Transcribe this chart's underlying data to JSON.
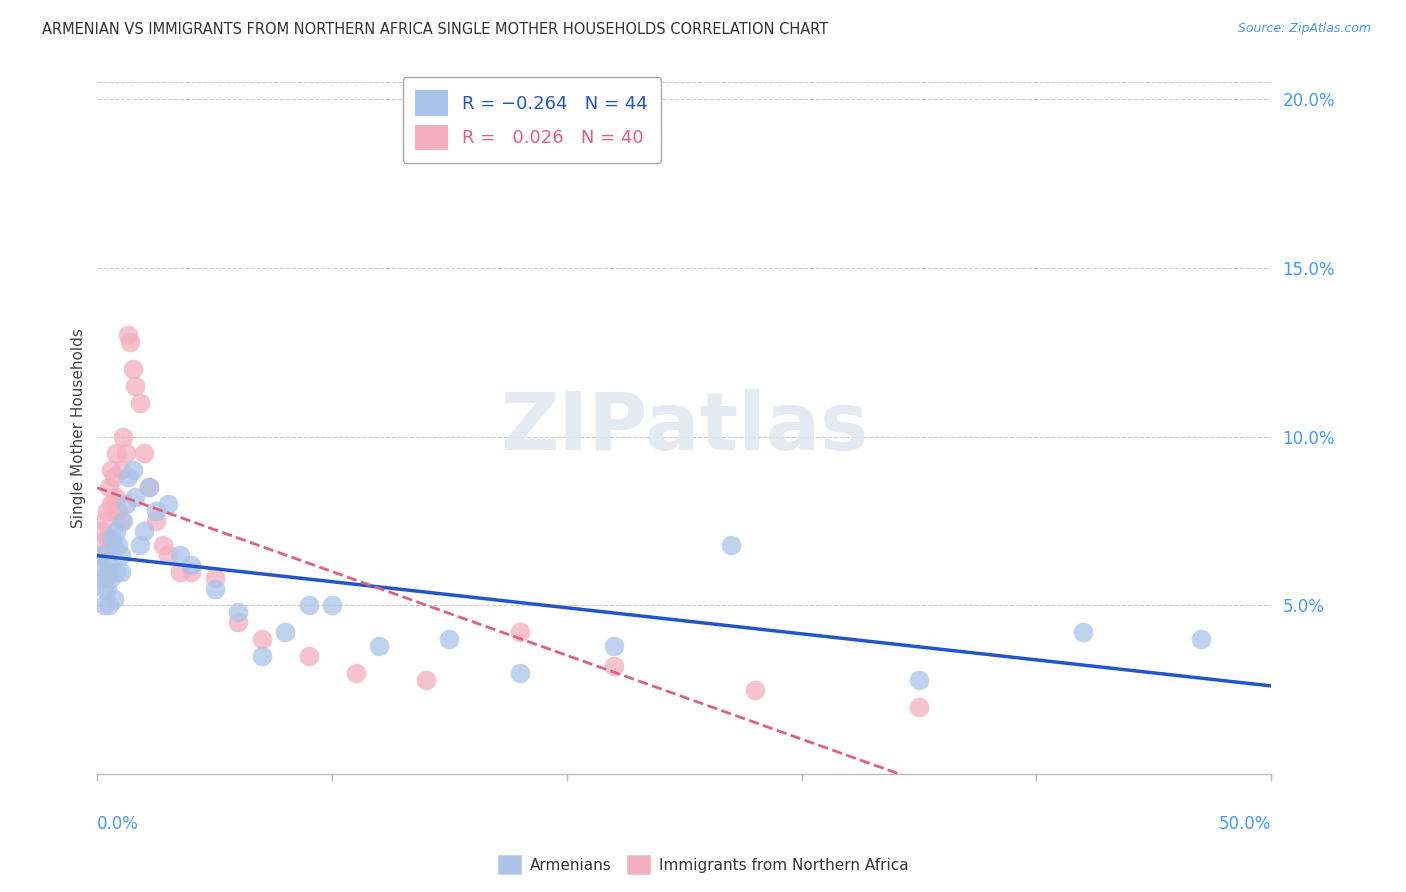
{
  "title": "ARMENIAN VS IMMIGRANTS FROM NORTHERN AFRICA SINGLE MOTHER HOUSEHOLDS CORRELATION CHART",
  "source": "Source: ZipAtlas.com",
  "ylabel": "Single Mother Households",
  "xlim": [
    0,
    0.5
  ],
  "ylim": [
    0,
    0.205
  ],
  "yticks": [
    0.05,
    0.1,
    0.15,
    0.2
  ],
  "ytick_labels": [
    "5.0%",
    "10.0%",
    "15.0%",
    "20.0%"
  ],
  "background_color": "#ffffff",
  "grid_color": "#cccccc",
  "armenian_color": "#aac4e8",
  "immigrant_color": "#f4aec0",
  "armenian_line_color": "#2255cc",
  "immigrant_line_color": "#e06080",
  "watermark_color": "#e0e8f0",
  "armenian_x": [
    0.001,
    0.002,
    0.002,
    0.003,
    0.003,
    0.004,
    0.004,
    0.005,
    0.005,
    0.006,
    0.006,
    0.007,
    0.007,
    0.008,
    0.008,
    0.009,
    0.01,
    0.01,
    0.011,
    0.012,
    0.013,
    0.015,
    0.016,
    0.018,
    0.02,
    0.022,
    0.025,
    0.03,
    0.035,
    0.04,
    0.05,
    0.06,
    0.07,
    0.08,
    0.09,
    0.1,
    0.12,
    0.15,
    0.18,
    0.22,
    0.27,
    0.35,
    0.42,
    0.47
  ],
  "armenian_y": [
    0.065,
    0.06,
    0.058,
    0.055,
    0.05,
    0.063,
    0.055,
    0.06,
    0.05,
    0.07,
    0.058,
    0.068,
    0.052,
    0.072,
    0.06,
    0.068,
    0.065,
    0.06,
    0.075,
    0.08,
    0.088,
    0.09,
    0.082,
    0.068,
    0.072,
    0.085,
    0.078,
    0.08,
    0.065,
    0.062,
    0.055,
    0.048,
    0.035,
    0.042,
    0.05,
    0.05,
    0.038,
    0.04,
    0.03,
    0.038,
    0.068,
    0.028,
    0.042,
    0.04
  ],
  "immigrant_x": [
    0.001,
    0.002,
    0.003,
    0.003,
    0.004,
    0.004,
    0.005,
    0.005,
    0.006,
    0.006,
    0.007,
    0.008,
    0.008,
    0.009,
    0.01,
    0.01,
    0.011,
    0.012,
    0.013,
    0.014,
    0.015,
    0.016,
    0.018,
    0.02,
    0.022,
    0.025,
    0.028,
    0.03,
    0.035,
    0.04,
    0.05,
    0.06,
    0.07,
    0.09,
    0.11,
    0.14,
    0.18,
    0.22,
    0.28,
    0.35
  ],
  "immigrant_y": [
    0.068,
    0.072,
    0.065,
    0.075,
    0.07,
    0.078,
    0.06,
    0.085,
    0.08,
    0.09,
    0.088,
    0.082,
    0.095,
    0.078,
    0.09,
    0.075,
    0.1,
    0.095,
    0.13,
    0.128,
    0.12,
    0.115,
    0.11,
    0.095,
    0.085,
    0.075,
    0.068,
    0.065,
    0.06,
    0.06,
    0.058,
    0.045,
    0.04,
    0.035,
    0.03,
    0.028,
    0.042,
    0.032,
    0.025,
    0.02
  ]
}
